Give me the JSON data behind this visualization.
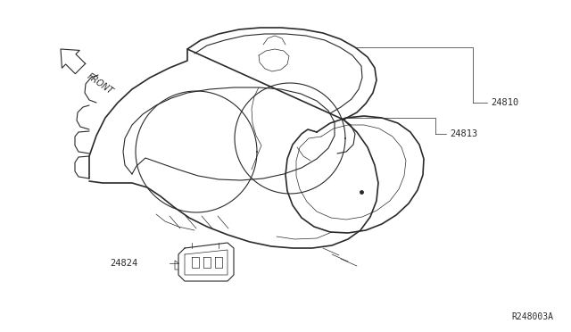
{
  "background_color": "#ffffff",
  "line_color": "#2a2a2a",
  "text_color": "#2a2a2a",
  "ref_code": "R248003A",
  "part_24810": "24810",
  "part_24813": "24813",
  "part_24824": "24824",
  "lw_thick": 1.2,
  "lw_med": 0.8,
  "lw_thin": 0.5,
  "figw": 6.4,
  "figh": 3.72,
  "dpi": 100
}
